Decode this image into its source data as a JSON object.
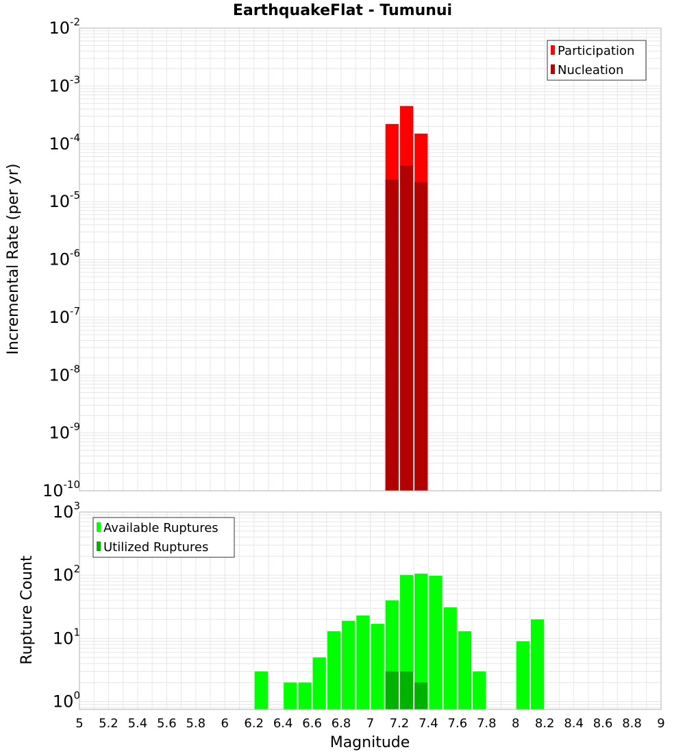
{
  "chart_data": [
    {
      "type": "bar",
      "title": "EarthquakeFlat - Tumunui",
      "ylabel": "Incremental Rate (per yr)",
      "xlabel": "",
      "yscale": "log",
      "ylim": [
        1e-10,
        0.01
      ],
      "xlim": [
        5,
        9
      ],
      "bin_width": 0.1,
      "grid": true,
      "legend": "top-right",
      "series": [
        {
          "name": "Participation",
          "color": "#ff0000",
          "points": [
            {
              "x": 7.15,
              "y": 0.00022
            },
            {
              "x": 7.25,
              "y": 0.00045
            },
            {
              "x": 7.35,
              "y": 0.00015
            }
          ]
        },
        {
          "name": "Nucleation",
          "color": "#b30000",
          "points": [
            {
              "x": 7.15,
              "y": 2.4e-05
            },
            {
              "x": 7.25,
              "y": 4.2e-05
            },
            {
              "x": 7.35,
              "y": 2.2e-05
            }
          ]
        }
      ]
    },
    {
      "type": "bar",
      "title": "",
      "ylabel": "Rupture Count",
      "xlabel": "Magnitude",
      "yscale": "log",
      "ylim": [
        0.75,
        1000
      ],
      "xlim": [
        5,
        9
      ],
      "bin_width": 0.1,
      "grid": true,
      "legend": "top-left",
      "series": [
        {
          "name": "Available Ruptures",
          "color": "#00ff00",
          "points": [
            {
              "x": 6.25,
              "y": 3
            },
            {
              "x": 6.45,
              "y": 2
            },
            {
              "x": 6.55,
              "y": 2
            },
            {
              "x": 6.65,
              "y": 5
            },
            {
              "x": 6.75,
              "y": 13
            },
            {
              "x": 6.85,
              "y": 19
            },
            {
              "x": 6.95,
              "y": 23
            },
            {
              "x": 7.05,
              "y": 17
            },
            {
              "x": 7.15,
              "y": 40
            },
            {
              "x": 7.25,
              "y": 101
            },
            {
              "x": 7.35,
              "y": 106
            },
            {
              "x": 7.45,
              "y": 98
            },
            {
              "x": 7.55,
              "y": 31
            },
            {
              "x": 7.65,
              "y": 13
            },
            {
              "x": 7.75,
              "y": 3
            },
            {
              "x": 8.05,
              "y": 9
            },
            {
              "x": 8.15,
              "y": 20
            }
          ]
        },
        {
          "name": "Utilized Ruptures",
          "color": "#00b200",
          "points": [
            {
              "x": 7.15,
              "y": 3
            },
            {
              "x": 7.25,
              "y": 3
            },
            {
              "x": 7.35,
              "y": 2
            }
          ]
        }
      ]
    }
  ],
  "axes": {
    "x_ticks": [
      "5",
      "5.2",
      "5.4",
      "5.6",
      "5.8",
      "6",
      "6.2",
      "6.4",
      "6.6",
      "6.8",
      "7",
      "7.2",
      "7.4",
      "7.6",
      "7.8",
      "8",
      "8.2",
      "8.4",
      "8.6",
      "8.8",
      "9"
    ],
    "top_y_ticks": [
      {
        "base": "10",
        "exp": "-2",
        "value": 0.01
      },
      {
        "base": "10",
        "exp": "-3",
        "value": 0.001
      },
      {
        "base": "10",
        "exp": "-4",
        "value": 0.0001
      },
      {
        "base": "10",
        "exp": "-5",
        "value": 1e-05
      },
      {
        "base": "10",
        "exp": "-6",
        "value": 1e-06
      },
      {
        "base": "10",
        "exp": "-7",
        "value": 1e-07
      },
      {
        "base": "10",
        "exp": "-8",
        "value": 1e-08
      },
      {
        "base": "10",
        "exp": "-9",
        "value": 1e-09
      },
      {
        "base": "10",
        "exp": "-10",
        "value": 1e-10
      }
    ],
    "bottom_y_ticks": [
      {
        "base": "10",
        "exp": "3",
        "value": 1000
      },
      {
        "base": "10",
        "exp": "2",
        "value": 100
      },
      {
        "base": "10",
        "exp": "1",
        "value": 10
      },
      {
        "base": "10",
        "exp": "0",
        "value": 1
      }
    ]
  },
  "colors": {
    "grid": "#e6e6e6",
    "frame": "#b0b0b0",
    "bar_separator": "#ffffff"
  }
}
